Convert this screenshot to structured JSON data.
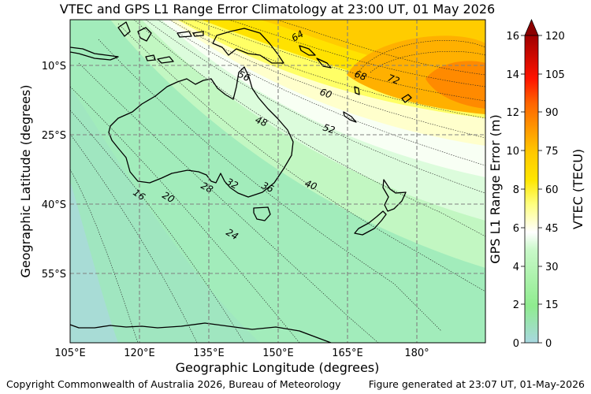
{
  "title": "VTEC and GPS L1 Range Error Climatology at 23:00 UT, 01 May 2026",
  "xlabel": "Geographic Longitude (degrees)",
  "ylabel": "Geographic Latitude (degrees)",
  "x_ticks": [
    "105°E",
    "120°E",
    "135°E",
    "150°E",
    "165°E",
    "180°"
  ],
  "y_ticks": [
    "10°S",
    "25°S",
    "40°S",
    "55°S"
  ],
  "colorbar": {
    "left_label": "GPS L1 Range Error (m)",
    "right_label": "VTEC (TECU)",
    "left_ticks": [
      "0",
      "2",
      "4",
      "6",
      "8",
      "10",
      "12",
      "14",
      "16"
    ],
    "right_ticks": [
      "0",
      "15",
      "30",
      "45",
      "60",
      "75",
      "90",
      "105",
      "120"
    ],
    "colors": [
      "#a8d8e0",
      "#a0ecb0",
      "#8fec8f",
      "#b8f5b8",
      "#e6ffe6",
      "#ffffee",
      "#ffff80",
      "#ffe600",
      "#ffc800",
      "#ff9600",
      "#ff6400",
      "#ff0000",
      "#d00000",
      "#8b0000"
    ]
  },
  "contour_labels": [
    "16",
    "20",
    "24",
    "28",
    "32",
    "36",
    "40",
    "48",
    "52",
    "56",
    "60",
    "64",
    "68",
    "72"
  ],
  "map_extent": {
    "lon": [
      105,
      195
    ],
    "lat": [
      -5,
      -75
    ]
  },
  "footer": {
    "copyright": "Copyright Commonwealth of Australia 2026, Bureau of Meteorology",
    "generated": "Figure generated at 23:07 UT, 01-May-2026"
  }
}
